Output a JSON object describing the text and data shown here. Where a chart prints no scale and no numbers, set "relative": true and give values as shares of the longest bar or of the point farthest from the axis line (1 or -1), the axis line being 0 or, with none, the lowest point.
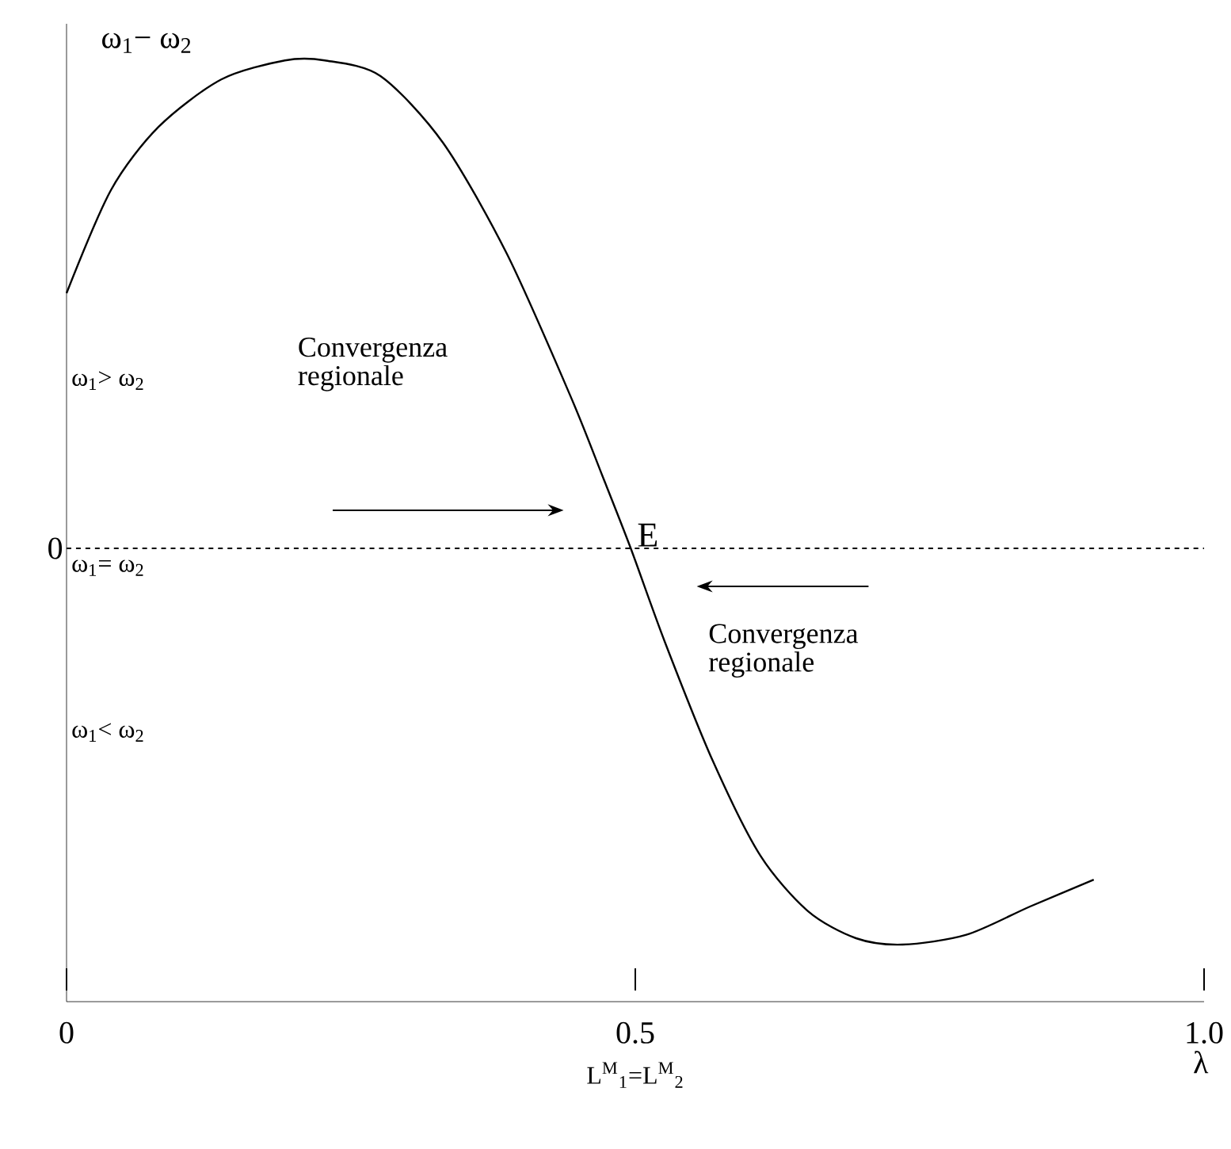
{
  "chart_data": {
    "type": "line",
    "relative": true,
    "ylabel": "ω$_{1}$− ω$_{2}$",
    "xlabel": "λ",
    "xlim": [
      0,
      1.0
    ],
    "xticks": [
      0,
      0.5,
      {
        "value": 1.0,
        "label": "1.0"
      }
    ],
    "series": [
      {
        "color": "#000000",
        "x": [
          0.0,
          0.039,
          0.081,
          0.136,
          0.192,
          0.227,
          0.276,
          0.331,
          0.387,
          0.443,
          0.471,
          0.496,
          0.526,
          0.568,
          0.61,
          0.652,
          0.694,
          0.735,
          0.791,
          0.847,
          0.903
        ],
        "values": [
          0.523,
          0.734,
          0.864,
          0.961,
          1.0,
          1.0,
          0.968,
          0.831,
          0.604,
          0.312,
          0.149,
          0,
          -0.192,
          -0.435,
          -0.63,
          -0.744,
          -0.799,
          -0.812,
          -0.792,
          -0.734,
          -0.679
        ]
      }
    ],
    "ref_lines": [
      {
        "axis": "y",
        "value": 0,
        "label": "0",
        "line_style": "dashed",
        "color": "#000000"
      }
    ],
    "annotations": [
      "ω$_{1}$> ω$_{2}$",
      "ω$_{1}$= ω$_{2}$",
      "ω$_{1}$< ω$_{2}$",
      "Convergenza regionale",
      "Convergenza regionale",
      {
        "text": "E",
        "x": 0.5,
        "y": 0
      },
      "L$^{M}$$_{1}$=L$^{M}$$_{2}$"
    ],
    "grid": false,
    "marker": "none",
    "line_style": "solid"
  }
}
